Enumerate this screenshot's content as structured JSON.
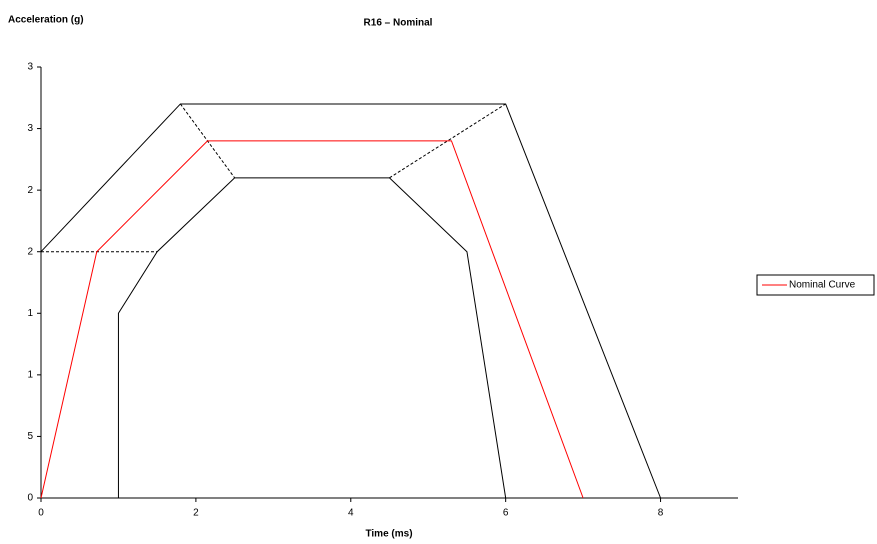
{
  "chart_data": {
    "type": "line",
    "title": "R16 – Nominal",
    "y_label": "Acceleration (g)",
    "x_label": "Time (ms)",
    "xlim": [
      0,
      9
    ],
    "xticks": [
      0,
      2,
      4,
      6,
      8
    ],
    "ylim": [
      0,
      35
    ],
    "yticks": [
      0,
      5,
      {
        "value": 10,
        "label": "1"
      },
      {
        "value": 15,
        "label": "1"
      },
      {
        "value": 20,
        "label": "2"
      },
      {
        "value": 25,
        "label": "2"
      },
      {
        "value": 30,
        "label": "3"
      },
      {
        "value": 35,
        "label": "3"
      }
    ],
    "legend": "right",
    "series": [
      {
        "color": "#000000",
        "x": [
          0,
          1.8,
          6.0,
          8.0
        ],
        "values": [
          20,
          32,
          32,
          0
        ]
      },
      {
        "color": "#000000",
        "x": [
          1.0,
          1.0,
          1.5,
          2.5,
          4.5,
          5.5,
          6.0
        ],
        "values": [
          0,
          15,
          20,
          26,
          26,
          20,
          0
        ]
      },
      {
        "color": "#000000",
        "dash": true,
        "x": [
          0,
          1.5
        ],
        "values": [
          20,
          20
        ]
      },
      {
        "color": "#000000",
        "dash": true,
        "x": [
          1.8,
          2.5
        ],
        "values": [
          32,
          26
        ]
      },
      {
        "color": "#000000",
        "dash": true,
        "x": [
          4.5,
          6.0
        ],
        "values": [
          26,
          32
        ]
      },
      {
        "name": "Nominal Curve",
        "color": "#ff0000",
        "x": [
          0,
          0.72,
          2.15,
          5.3,
          7.0
        ],
        "values": [
          0,
          20,
          29,
          29,
          0
        ]
      }
    ]
  }
}
